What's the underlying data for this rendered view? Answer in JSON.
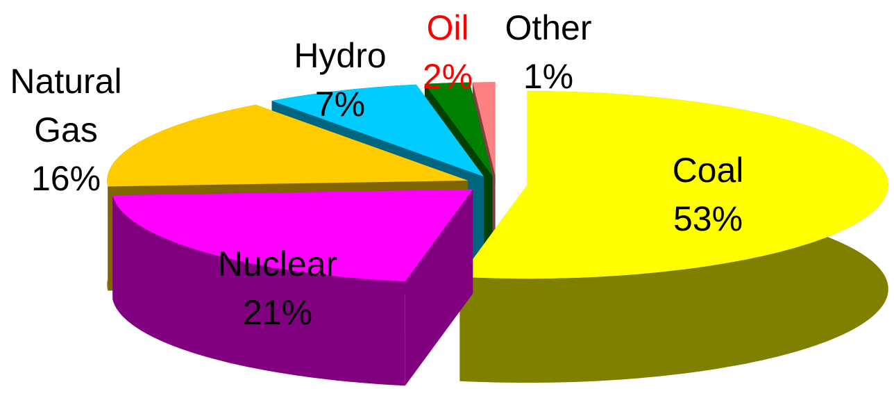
{
  "chart_data": {
    "type": "pie3d",
    "categories": [
      "Coal",
      "Nuclear",
      "Natural Gas",
      "Hydro",
      "Oil",
      "Other"
    ],
    "values": [
      53,
      21,
      16,
      7,
      2,
      1
    ],
    "value_labels": [
      "53%",
      "21%",
      "16%",
      "7%",
      "2%",
      "1%"
    ],
    "colors": [
      "#ffff00",
      "#ff00ff",
      "#ffcc00",
      "#00ccff",
      "#008000",
      "#ff8080"
    ],
    "side_colors": [
      "#808000",
      "#800080",
      "#806600",
      "#006680",
      "#004000",
      "#804040"
    ],
    "label_colors": [
      "#000000",
      "#000000",
      "#000000",
      "#000000",
      "#ff0000",
      "#000000"
    ]
  }
}
